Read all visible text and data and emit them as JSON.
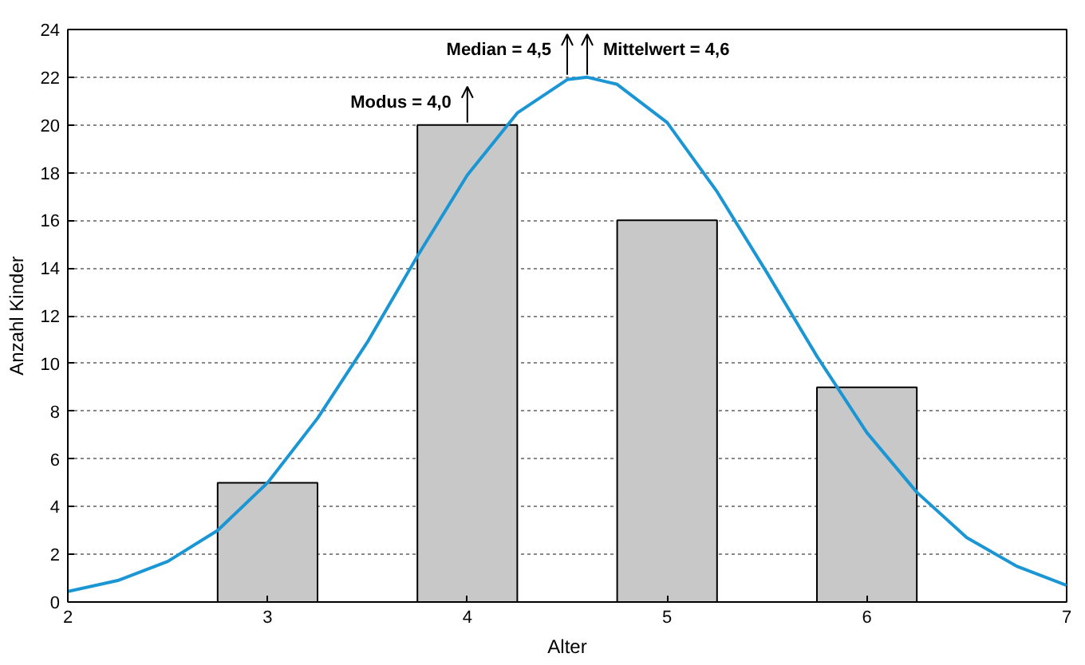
{
  "chart_data": {
    "type": "bar",
    "xlabel": "Alter",
    "ylabel": "Anzahl Kinder",
    "series": [
      {
        "x": [
          3,
          4,
          5,
          6
        ],
        "values": [
          5,
          20,
          16,
          9
        ],
        "color": "#c8c8c8"
      },
      {
        "type": "line",
        "color": "#1a96d4",
        "x": [
          2,
          2.25,
          2.5,
          2.75,
          3,
          3.25,
          3.5,
          3.75,
          4,
          4.25,
          4.5,
          4.6,
          4.75,
          5,
          5.25,
          5.5,
          5.75,
          6,
          6.25,
          6.5,
          6.75,
          7
        ],
        "values": [
          0.44,
          0.9,
          1.7,
          3.0,
          5.0,
          7.7,
          10.9,
          14.5,
          17.9,
          20.5,
          21.9,
          22,
          21.7,
          20.1,
          17.2,
          13.8,
          10.3,
          7.1,
          4.6,
          2.7,
          1.5,
          0.7
        ]
      }
    ],
    "xlim": [
      2,
      7
    ],
    "xticks": [
      2,
      3,
      4,
      5,
      6,
      7
    ],
    "ylim": [
      0,
      24
    ],
    "yticks": [
      0,
      2,
      4,
      6,
      8,
      10,
      12,
      14,
      16,
      18,
      20,
      22,
      24
    ],
    "grid": "y",
    "marker": "none",
    "line_style": "solid",
    "annotations": [
      {
        "text": "Modus = 4,0",
        "x": 4,
        "y": 20
      },
      {
        "text": "Median = 4,5",
        "x": 4.5,
        "y": 22
      },
      {
        "text": "Mittelwert = 4,6",
        "x": 4.6,
        "y": 22
      }
    ]
  }
}
